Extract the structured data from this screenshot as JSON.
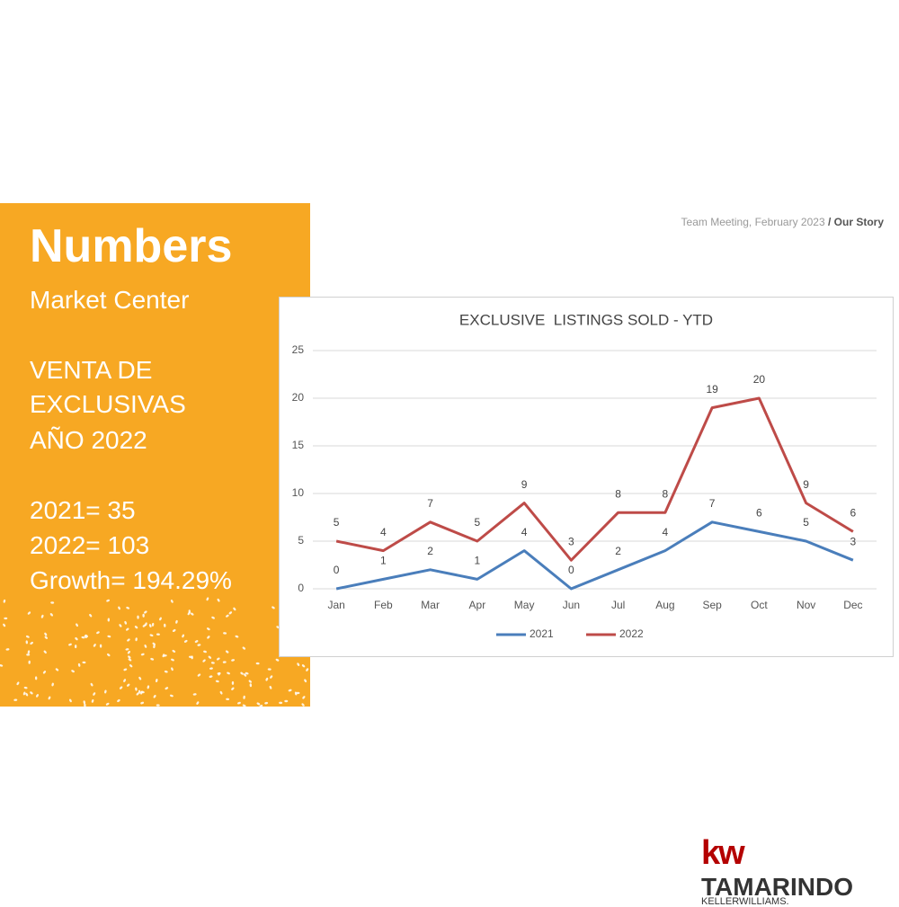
{
  "slide": {
    "breadcrumb": "Team Meeting, February 2023",
    "separator": "/",
    "section": "Our Story",
    "title": "Numbers",
    "subtitle": "Market Center",
    "heading": [
      "VENTA DE",
      "EXCLUSIVAS",
      "AÑO 2022"
    ],
    "stats": [
      "2021= 35",
      "2022= 103",
      "Growth= 194.29%"
    ],
    "logo_mark": "kw",
    "logo_name": "TAMARINDO",
    "logo_sub": "KELLERWILLIAMS."
  },
  "chart_data": {
    "type": "line",
    "title": "EXCLUSIVE  LISTINGS SOLD - YTD",
    "categories": [
      "Jan",
      "Feb",
      "Mar",
      "Apr",
      "May",
      "Jun",
      "Jul",
      "Aug",
      "Sep",
      "Oct",
      "Nov",
      "Dec"
    ],
    "series": [
      {
        "name": "2021",
        "color": "#4a7ebb",
        "values": [
          0,
          1,
          2,
          1,
          4,
          0,
          2,
          4,
          7,
          6,
          5,
          3
        ]
      },
      {
        "name": "2022",
        "color": "#be4b48",
        "values": [
          5,
          4,
          7,
          5,
          9,
          3,
          8,
          8,
          19,
          20,
          9,
          6
        ]
      }
    ],
    "ylim": [
      0,
      25
    ],
    "yticks": [
      0,
      5,
      10,
      15,
      20,
      25
    ],
    "grid": true,
    "legend": "bottom"
  }
}
